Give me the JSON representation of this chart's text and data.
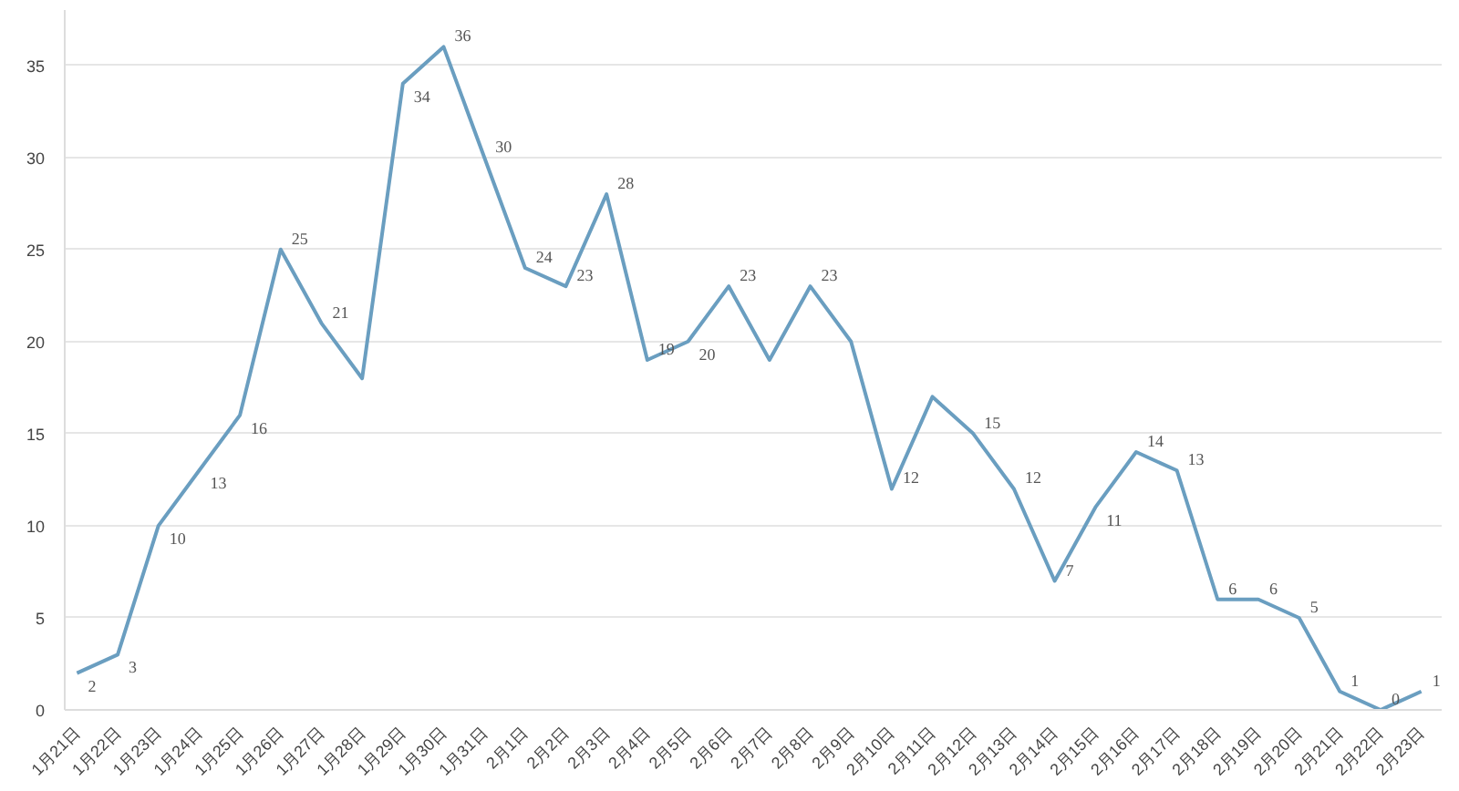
{
  "chart_data": {
    "type": "line",
    "categories": [
      "1月21日",
      "1月22日",
      "1月23日",
      "1月24日",
      "1月25日",
      "1月26日",
      "1月27日",
      "1月28日",
      "1月29日",
      "1月30日",
      "1月31日",
      "2月1日",
      "2月2日",
      "2月3日",
      "2月4日",
      "2月5日",
      "2月6日",
      "2月7日",
      "2月8日",
      "2月9日",
      "2月10日",
      "2月11日",
      "2月12日",
      "2月13日",
      "2月14日",
      "2月15日",
      "2月16日",
      "2月17日",
      "2月18日",
      "2月19日",
      "2月20日",
      "2月21日",
      "2月22日",
      "2月23日"
    ],
    "series": [
      {
        "color": "#6a9ec0",
        "values": [
          2,
          3,
          10,
          13,
          16,
          25,
          21,
          18,
          34,
          36,
          30,
          24,
          23,
          28,
          19,
          20,
          23,
          19,
          23,
          20,
          12,
          17,
          15,
          12,
          7,
          11,
          14,
          13,
          6,
          6,
          5,
          1,
          0,
          1
        ],
        "value_labels": [
          "2",
          "3",
          "10",
          "13",
          "16",
          "25",
          "21",
          null,
          "34",
          "36",
          "30",
          "24",
          "23",
          "28",
          "19",
          "20",
          "23",
          null,
          "23",
          null,
          "12",
          null,
          "15",
          "12",
          "7",
          "11",
          "14",
          "13",
          "6",
          "6",
          "5",
          "1",
          "0",
          "1"
        ]
      }
    ],
    "ylim": [
      0,
      38
    ],
    "yticks": [
      0,
      5,
      10,
      15,
      20,
      25,
      30,
      35
    ],
    "grid": "y",
    "marker": "none",
    "line_style": "solid"
  }
}
